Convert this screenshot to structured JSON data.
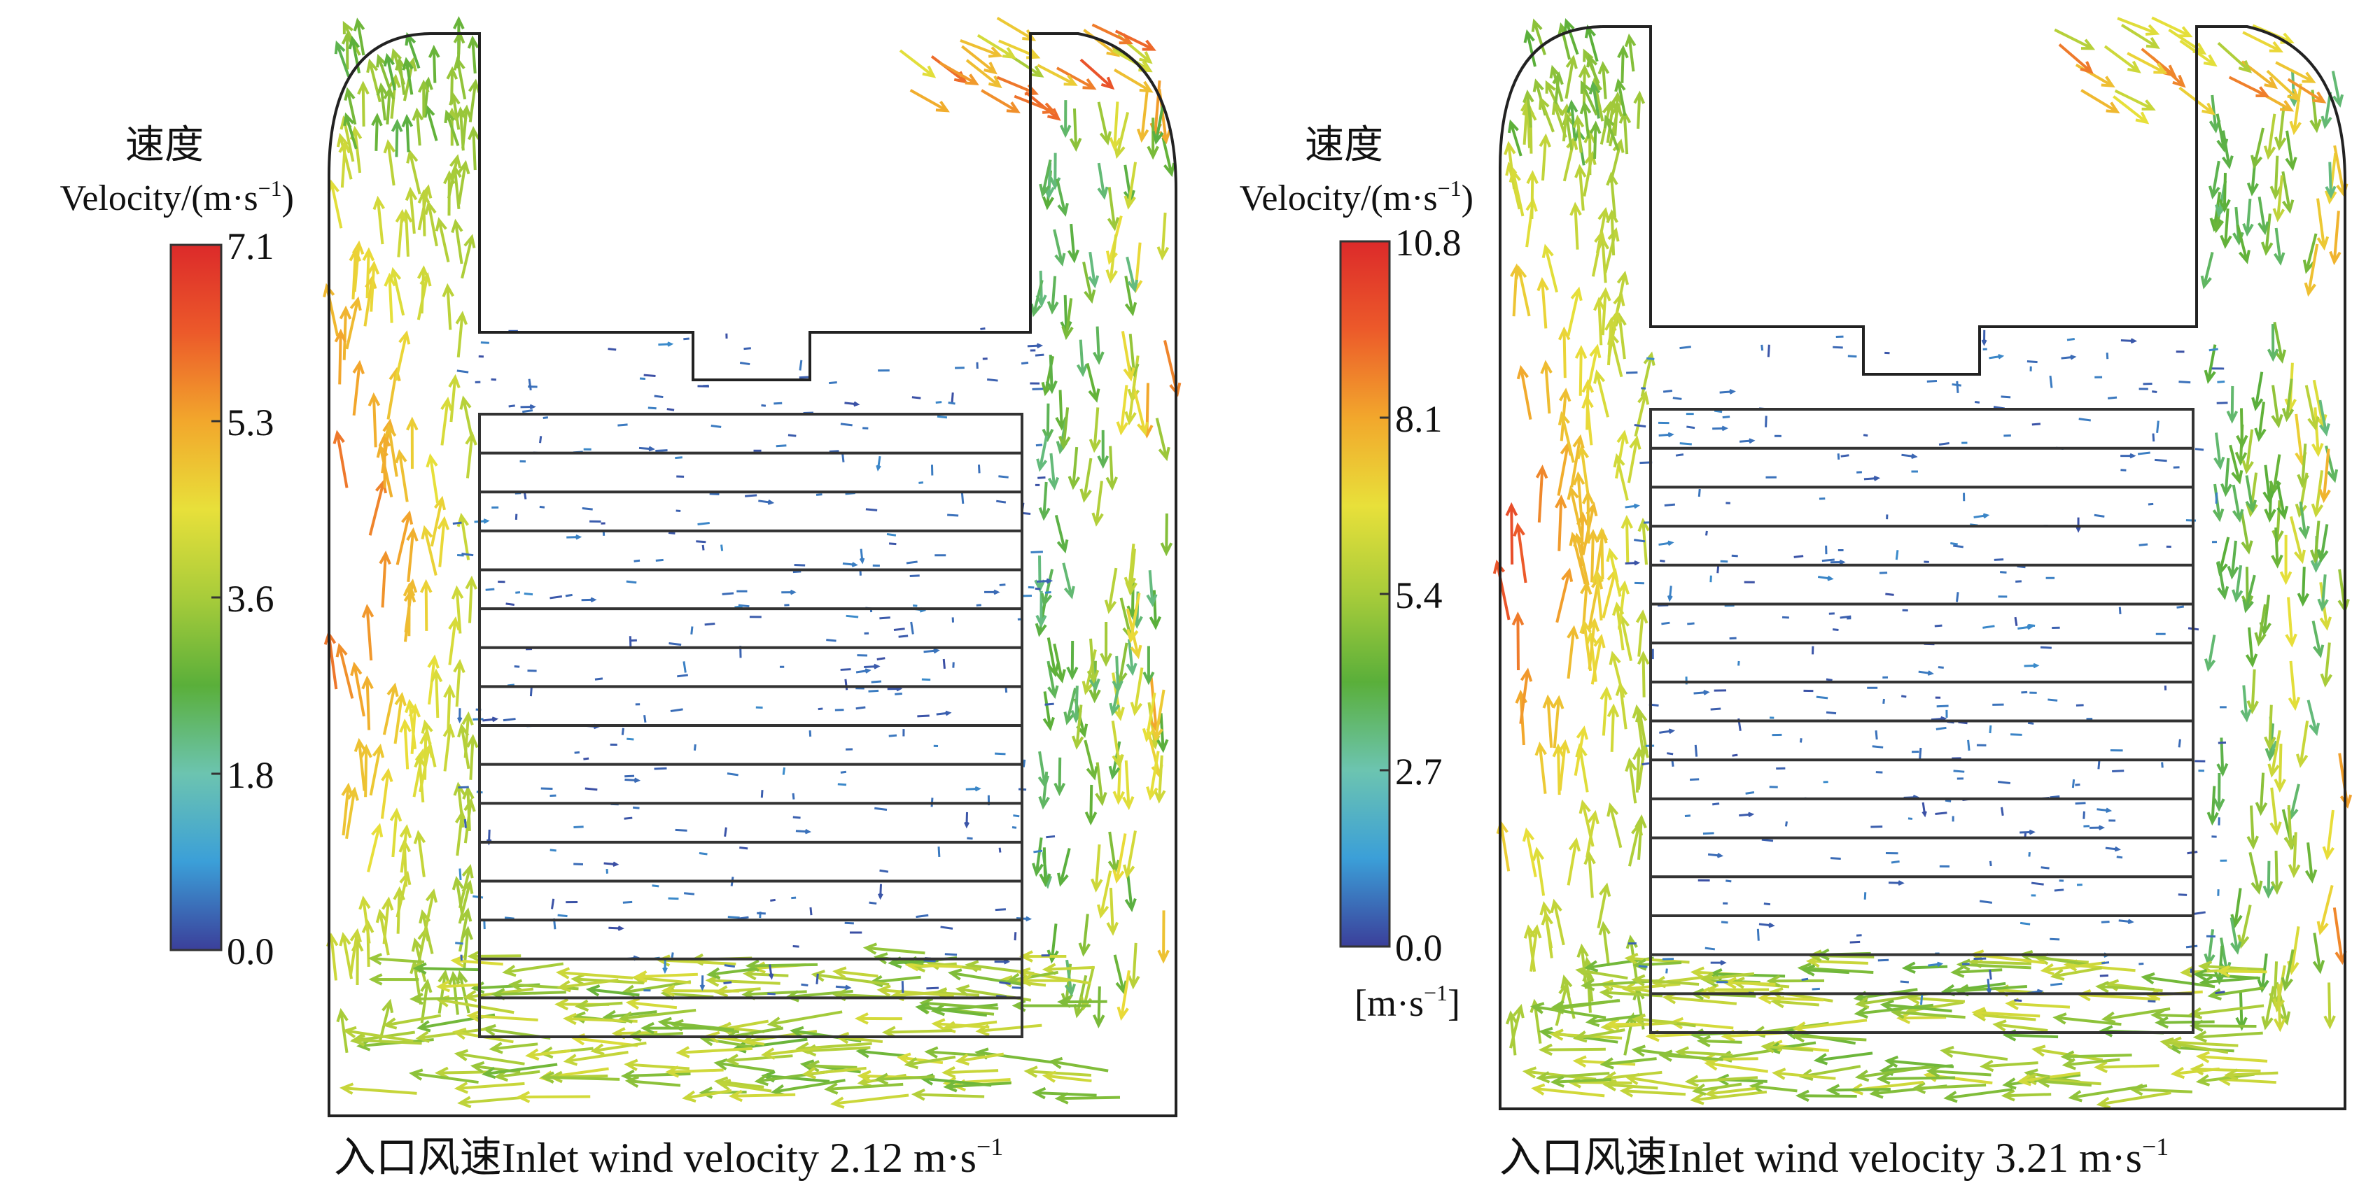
{
  "chart_data": [
    {
      "type": "vector_field",
      "colorbar": {
        "label_cn": "速度",
        "label_en": "Velocity/(m·s",
        "label_sup": "−1",
        "label_close": ")",
        "min": 0.0,
        "max": 7.1,
        "ticks": [
          "7.1",
          "5.3",
          "3.6",
          "1.8",
          "0.0"
        ],
        "colors": [
          "#3b3f9a",
          "#3b9fd8",
          "#6cc4b0",
          "#5aaf3a",
          "#a8cc3a",
          "#e8e03a",
          "#f2a72c",
          "#ec5a2a",
          "#dc2a2a"
        ]
      },
      "caption": {
        "prefix_cn": "入口风速",
        "text": "Inlet wind velocity 2.12 m·s",
        "sup": "−1"
      },
      "inlet_velocity": 2.12,
      "units": "m·s⁻¹"
    },
    {
      "type": "vector_field",
      "colorbar": {
        "label_cn": "速度",
        "label_en": "Velocity/(m·s",
        "label_sup": "−1",
        "label_close": ")",
        "min": 0.0,
        "max": 10.8,
        "ticks": [
          "10.8",
          "8.1",
          "5.4",
          "2.7",
          "0.0"
        ],
        "unit_label": "[m·s",
        "unit_sup": "−1",
        "unit_close": "]",
        "colors": [
          "#3b3f9a",
          "#3b9fd8",
          "#6cc4b0",
          "#5aaf3a",
          "#a8cc3a",
          "#e8e03a",
          "#f2a72c",
          "#ec5a2a",
          "#dc2a2a"
        ]
      },
      "caption": {
        "prefix_cn": "入口风速",
        "text": "Inlet wind velocity 3.21 m·s",
        "sup": "−1"
      },
      "inlet_velocity": 3.21,
      "units": "m·s⁻¹"
    }
  ]
}
